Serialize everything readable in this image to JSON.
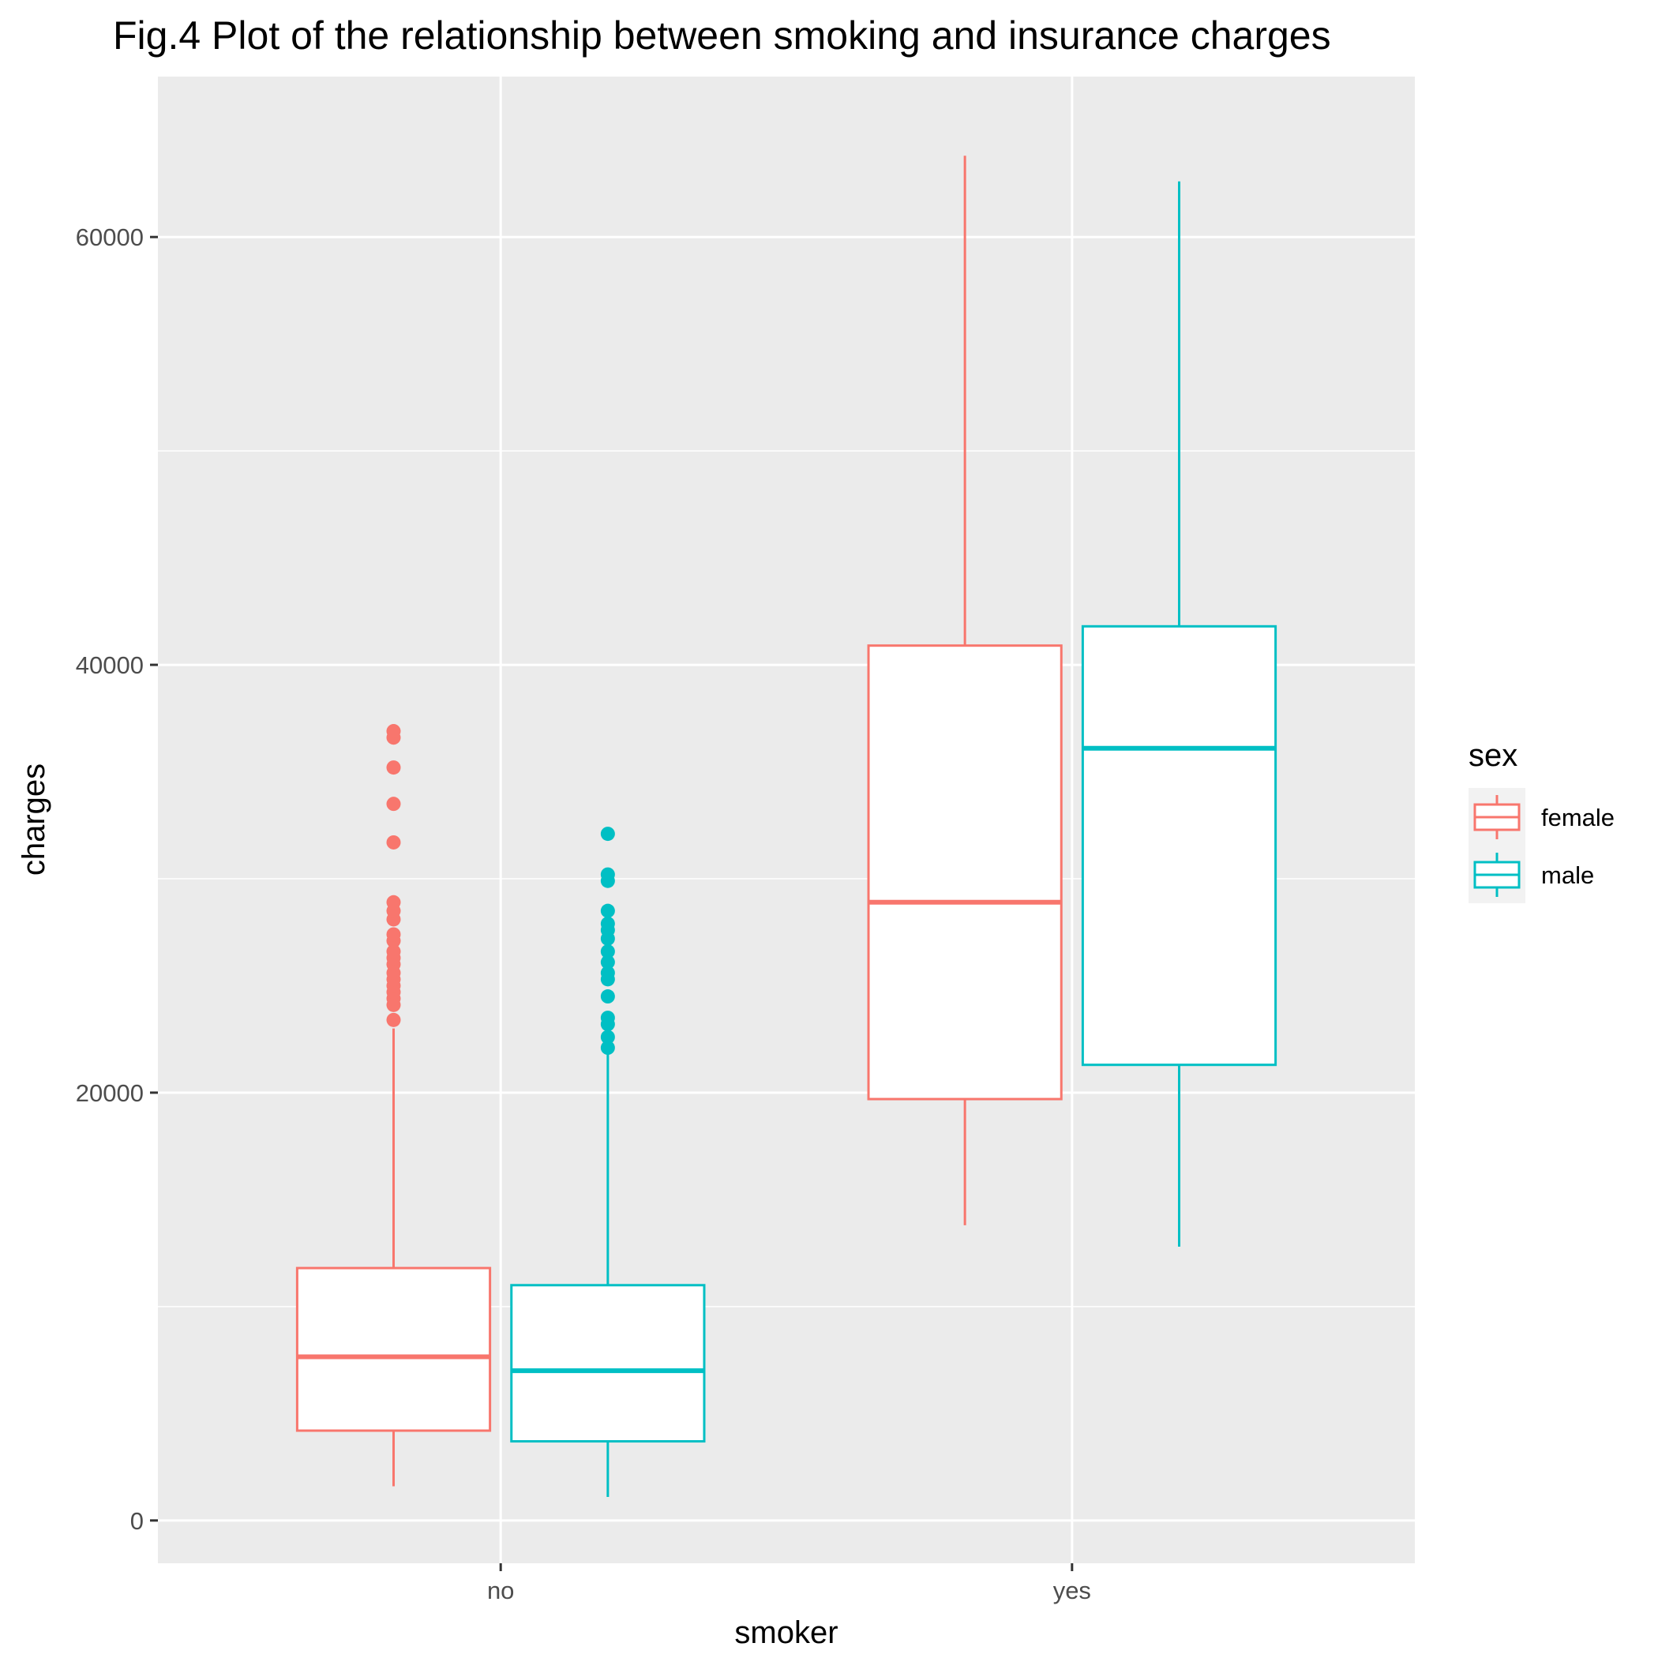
{
  "chart_data": {
    "type": "boxplot",
    "title": "Fig.4 Plot of the relationship between smoking and insurance charges",
    "xlabel": "smoker",
    "ylabel": "charges",
    "categories": [
      "no",
      "yes"
    ],
    "ylim": [
      -2000,
      67500
    ],
    "yticks": [
      0,
      20000,
      40000,
      60000
    ],
    "ytick_labels": [
      "0",
      "20000",
      "40000",
      "60000"
    ],
    "grid": true,
    "legend": {
      "title": "sex",
      "position": "right",
      "entries": [
        "female",
        "male"
      ]
    },
    "colors": {
      "female": "#F8766D",
      "male": "#00BFC4",
      "panel_background": "#EBEBEB",
      "grid": "#FFFFFF",
      "box_fill": "#FFFFFF"
    },
    "series": [
      {
        "name": "female",
        "boxes": [
          {
            "category": "no",
            "whisker_low": 1600,
            "q1": 4200,
            "median": 7650,
            "q3": 11800,
            "whisker_high": 23000,
            "outliers": [
              23400,
              24100,
              24400,
              24700,
              25000,
              25300,
              25600,
              26000,
              26300,
              26600,
              27100,
              27400,
              28100,
              28500,
              28900,
              31700,
              33500,
              35200,
              36600,
              36900
            ]
          },
          {
            "category": "yes",
            "whisker_low": 13800,
            "q1": 19700,
            "median": 28900,
            "q3": 40900,
            "whisker_high": 63800
          }
        ]
      },
      {
        "name": "male",
        "boxes": [
          {
            "category": "no",
            "whisker_low": 1100,
            "q1": 3700,
            "median": 7000,
            "q3": 11000,
            "whisker_high": 21800,
            "outliers": [
              22100,
              22600,
              23200,
              23500,
              24500,
              25300,
              25600,
              26100,
              26600,
              27200,
              27600,
              27900,
              28500,
              29900,
              30200,
              32100
            ]
          },
          {
            "category": "yes",
            "whisker_low": 12800,
            "q1": 21300,
            "median": 36100,
            "q3": 41800,
            "whisker_high": 62600
          }
        ]
      }
    ]
  }
}
